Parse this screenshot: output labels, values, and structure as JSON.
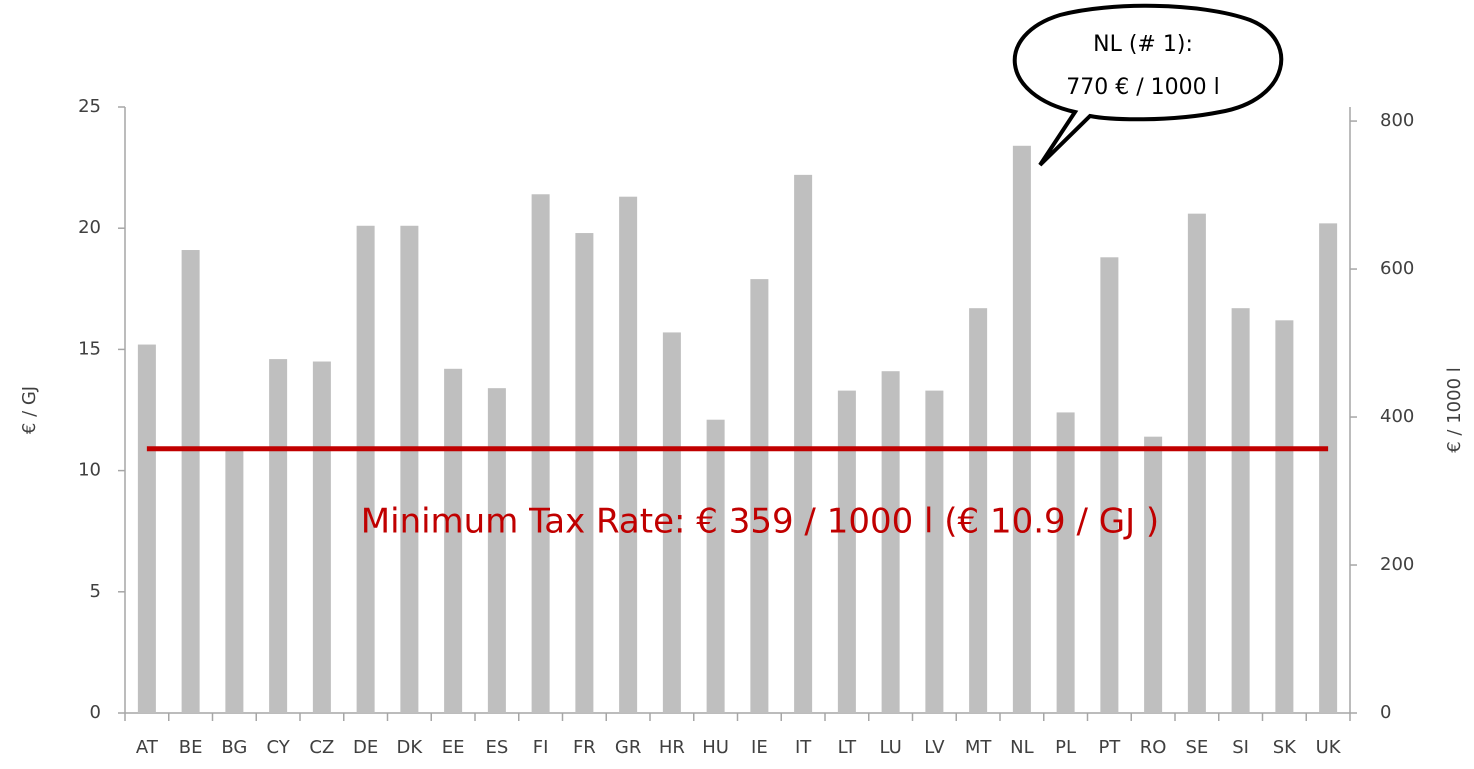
{
  "chart_data": {
    "type": "bar",
    "categories": [
      "AT",
      "BE",
      "BG",
      "CY",
      "CZ",
      "DE",
      "DK",
      "EE",
      "ES",
      "FI",
      "FR",
      "GR",
      "HR",
      "HU",
      "IE",
      "IT",
      "LT",
      "LU",
      "LV",
      "MT",
      "NL",
      "PL",
      "PT",
      "RO",
      "SE",
      "SI",
      "SK",
      "UK"
    ],
    "values": [
      15.2,
      19.1,
      10.9,
      14.6,
      14.5,
      20.1,
      20.1,
      14.2,
      13.4,
      21.4,
      19.8,
      21.3,
      15.7,
      12.1,
      17.9,
      22.2,
      13.3,
      14.1,
      13.3,
      16.7,
      23.4,
      12.4,
      18.8,
      11.4,
      20.6,
      16.7,
      16.2,
      20.2
    ],
    "color": "#bfbfbf",
    "ylim": [
      0,
      25
    ],
    "yticks": [
      0,
      5,
      10,
      15,
      20,
      25
    ],
    "y2lim": [
      0,
      819
    ],
    "y2ticks": [
      0,
      200,
      400,
      600,
      800
    ],
    "ylabel": "€ / GJ",
    "y2label": "€ / 1000 l",
    "reference_line": {
      "value": 10.9,
      "color": "#c00000",
      "label": "Minimum Tax Rate: € 359 / 1000 l (€ 10.9 / GJ )"
    },
    "callout": [
      "NL (# 1):",
      "770 € / 1000 l"
    ]
  }
}
